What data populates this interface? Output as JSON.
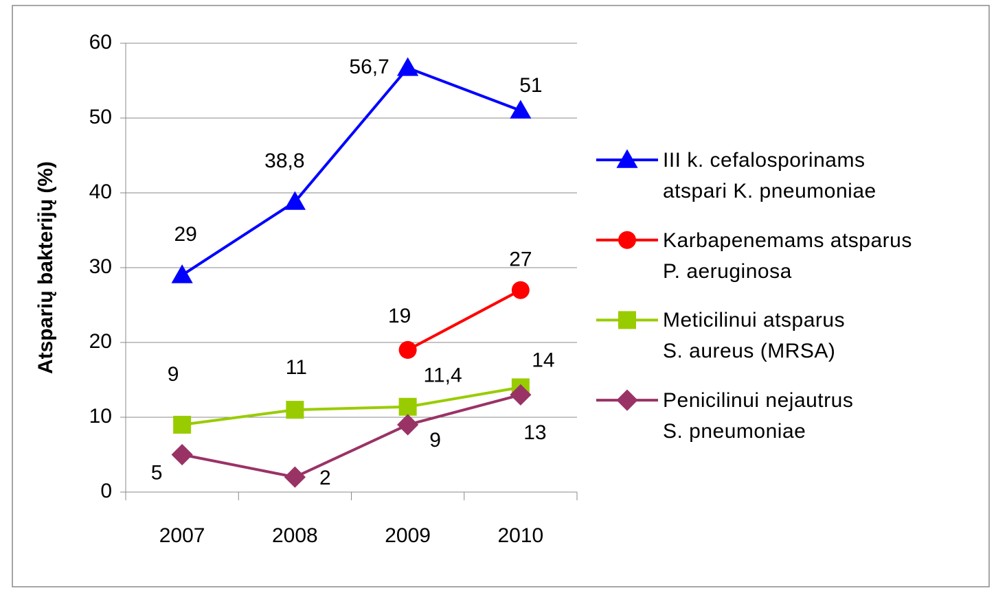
{
  "chart_data": {
    "type": "line",
    "y_label": "Atsparių bakterijų (%)",
    "categories": [
      "2007",
      "2008",
      "2009",
      "2010"
    ],
    "ylim": [
      0,
      60
    ],
    "yticks": [
      0,
      10,
      20,
      30,
      40,
      50,
      60
    ],
    "grid": true,
    "legend": "right",
    "series": [
      {
        "name": "III k. cefalosporinams\natspari K. pneumoniae",
        "color": "#0000ff",
        "marker": "triangle",
        "values": [
          29,
          38.8,
          56.7,
          51
        ],
        "value_labels": [
          "29",
          "38,8",
          "56,7",
          "51"
        ]
      },
      {
        "name": "Karbapenemams atsparus\nP. aeruginosa",
        "color": "#ff0000",
        "marker": "circle",
        "values": [
          null,
          null,
          19,
          27
        ]
      },
      {
        "name": "Meticilinui atsparus\nS. aureus (MRSA)",
        "color": "#99cc00",
        "marker": "square",
        "values": [
          9,
          11,
          11.4,
          14
        ],
        "value_labels": [
          "9",
          "11",
          "11,4",
          "14"
        ]
      },
      {
        "name": "Penicilinui nejautrus\nS. pneumoniae",
        "color": "#993366",
        "marker": "diamond",
        "values": [
          5,
          2,
          9,
          13
        ]
      }
    ]
  }
}
